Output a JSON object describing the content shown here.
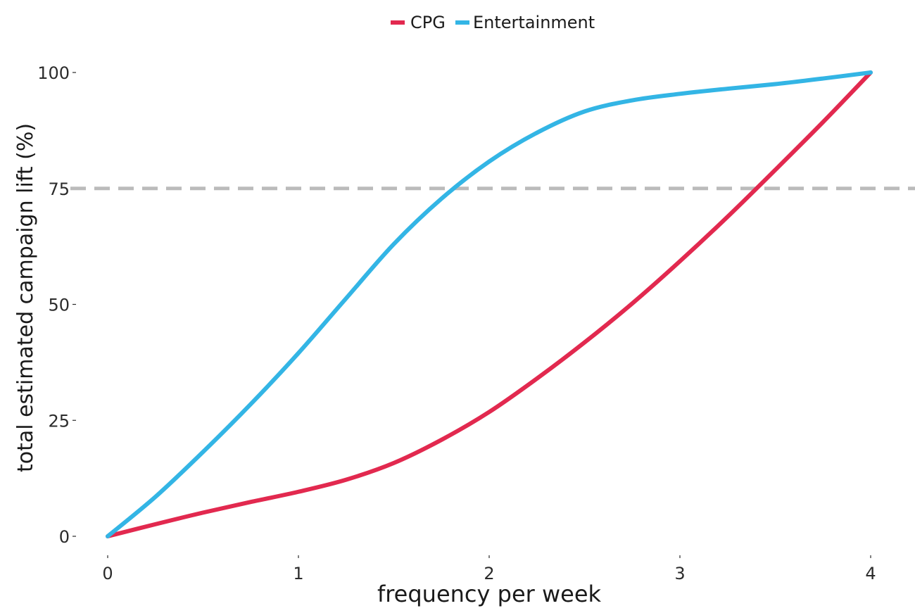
{
  "chart_data": {
    "type": "line",
    "title": "",
    "xlabel": "frequency per week",
    "ylabel": "total estimated campaign lift (%)",
    "xlim": [
      0,
      4
    ],
    "ylim": [
      0,
      100
    ],
    "x_ticks": [
      0,
      1,
      2,
      3,
      4
    ],
    "y_ticks": [
      0,
      25,
      50,
      75,
      100
    ],
    "grid": false,
    "legend_position": "top-center",
    "reference_line": {
      "y": 75,
      "style": "dashed",
      "color": "#bbbbbb"
    },
    "series": [
      {
        "name": "CPG",
        "color": "#e2294f",
        "x": [
          0,
          0.25,
          0.5,
          0.75,
          1.0,
          1.25,
          1.5,
          1.75,
          2.0,
          2.25,
          2.5,
          2.75,
          3.0,
          3.25,
          3.5,
          3.75,
          4.0
        ],
        "y": [
          0,
          2.6,
          5.1,
          7.4,
          9.6,
          12.2,
          15.8,
          20.8,
          26.8,
          34.0,
          41.8,
          50.2,
          59.3,
          68.9,
          79.0,
          89.3,
          100
        ]
      },
      {
        "name": "Entertainment",
        "color": "#33b5e5",
        "x": [
          0,
          0.25,
          0.5,
          0.75,
          1.0,
          1.25,
          1.5,
          1.75,
          2.0,
          2.25,
          2.5,
          2.75,
          3.0,
          3.25,
          3.5,
          3.75,
          4.0
        ],
        "y": [
          0,
          8.5,
          18.2,
          28.5,
          39.5,
          51.3,
          63.0,
          72.8,
          80.8,
          87.0,
          91.6,
          94.0,
          95.4,
          96.5,
          97.5,
          98.7,
          100
        ]
      }
    ]
  }
}
